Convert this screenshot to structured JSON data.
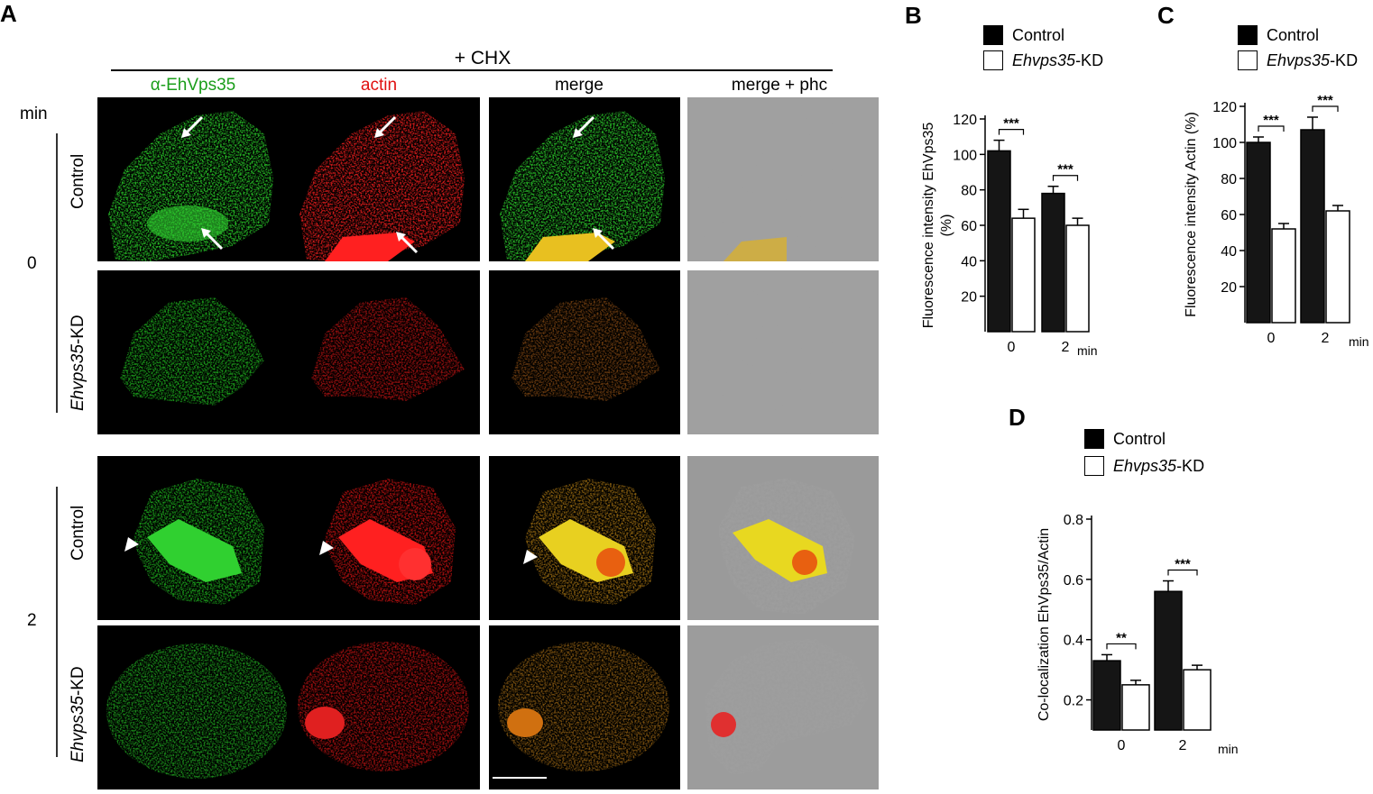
{
  "panel_a": {
    "letter": "A",
    "treatment": "+ CHX",
    "min_label": "min",
    "columns": [
      {
        "label": "α-EhVps35",
        "color": "#1b9e1b"
      },
      {
        "label": "actin",
        "color": "#e01010"
      },
      {
        "label": "merge",
        "color": "#000000"
      },
      {
        "label": "merge + phc",
        "color": "#000000"
      }
    ],
    "time_groups": [
      {
        "time": "0",
        "rows": [
          {
            "label": "Control",
            "italic_part": "",
            "suffix": ""
          },
          {
            "label": "",
            "italic_part": "Ehvps35",
            "suffix": "-KD"
          }
        ]
      },
      {
        "time": "2",
        "rows": [
          {
            "label": "Control",
            "italic_part": "",
            "suffix": ""
          },
          {
            "label": "",
            "italic_part": "Ehvps35",
            "suffix": "-KD"
          }
        ]
      }
    ],
    "annotation_icons": [
      "arrow-icon",
      "arrowhead-icon",
      "scale-bar"
    ]
  },
  "legend": {
    "control": "Control",
    "kd_italic": "Ehvps35",
    "kd_suffix": "-KD",
    "control_color": "#000000",
    "kd_color": "#ffffff"
  },
  "chart_data": [
    {
      "panel": "B",
      "type": "bar",
      "categories": [
        "0",
        "2"
      ],
      "x_unit": "min",
      "ylabel": "Fluorescence intensity EhVps35 (%)",
      "ylim": [
        0,
        120
      ],
      "yticks": [
        "20",
        "40",
        "60",
        "80",
        "100",
        "120"
      ],
      "series": [
        {
          "name": "Control",
          "values": [
            102,
            78
          ],
          "errors": [
            6,
            4
          ]
        },
        {
          "name": "Ehvps35-KD",
          "values": [
            64,
            60
          ],
          "errors": [
            5,
            4
          ]
        }
      ],
      "significance": [
        "***",
        "***"
      ]
    },
    {
      "panel": "C",
      "type": "bar",
      "categories": [
        "0",
        "2"
      ],
      "x_unit": "min",
      "ylabel": "Fluorescence intensity Actin (%)",
      "ylim": [
        0,
        120
      ],
      "yticks": [
        "20",
        "40",
        "60",
        "80",
        "100",
        "120"
      ],
      "series": [
        {
          "name": "Control",
          "values": [
            100,
            107
          ],
          "errors": [
            3,
            7
          ]
        },
        {
          "name": "Ehvps35-KD",
          "values": [
            52,
            62
          ],
          "errors": [
            3,
            3
          ]
        }
      ],
      "significance": [
        "***",
        "***"
      ]
    },
    {
      "panel": "D",
      "type": "bar",
      "categories": [
        "0",
        "2"
      ],
      "x_unit": "min",
      "ylabel": "Co-localization EhVps35/Actin",
      "ylim": [
        0.1,
        0.8
      ],
      "yticks": [
        "0.2",
        "0.4",
        "0.6",
        "0.8"
      ],
      "series": [
        {
          "name": "Control",
          "values": [
            0.33,
            0.56
          ],
          "errors": [
            0.02,
            0.035
          ]
        },
        {
          "name": "Ehvps35-KD",
          "values": [
            0.25,
            0.3
          ],
          "errors": [
            0.015,
            0.015
          ]
        }
      ],
      "significance": [
        "**",
        "***"
      ]
    }
  ]
}
